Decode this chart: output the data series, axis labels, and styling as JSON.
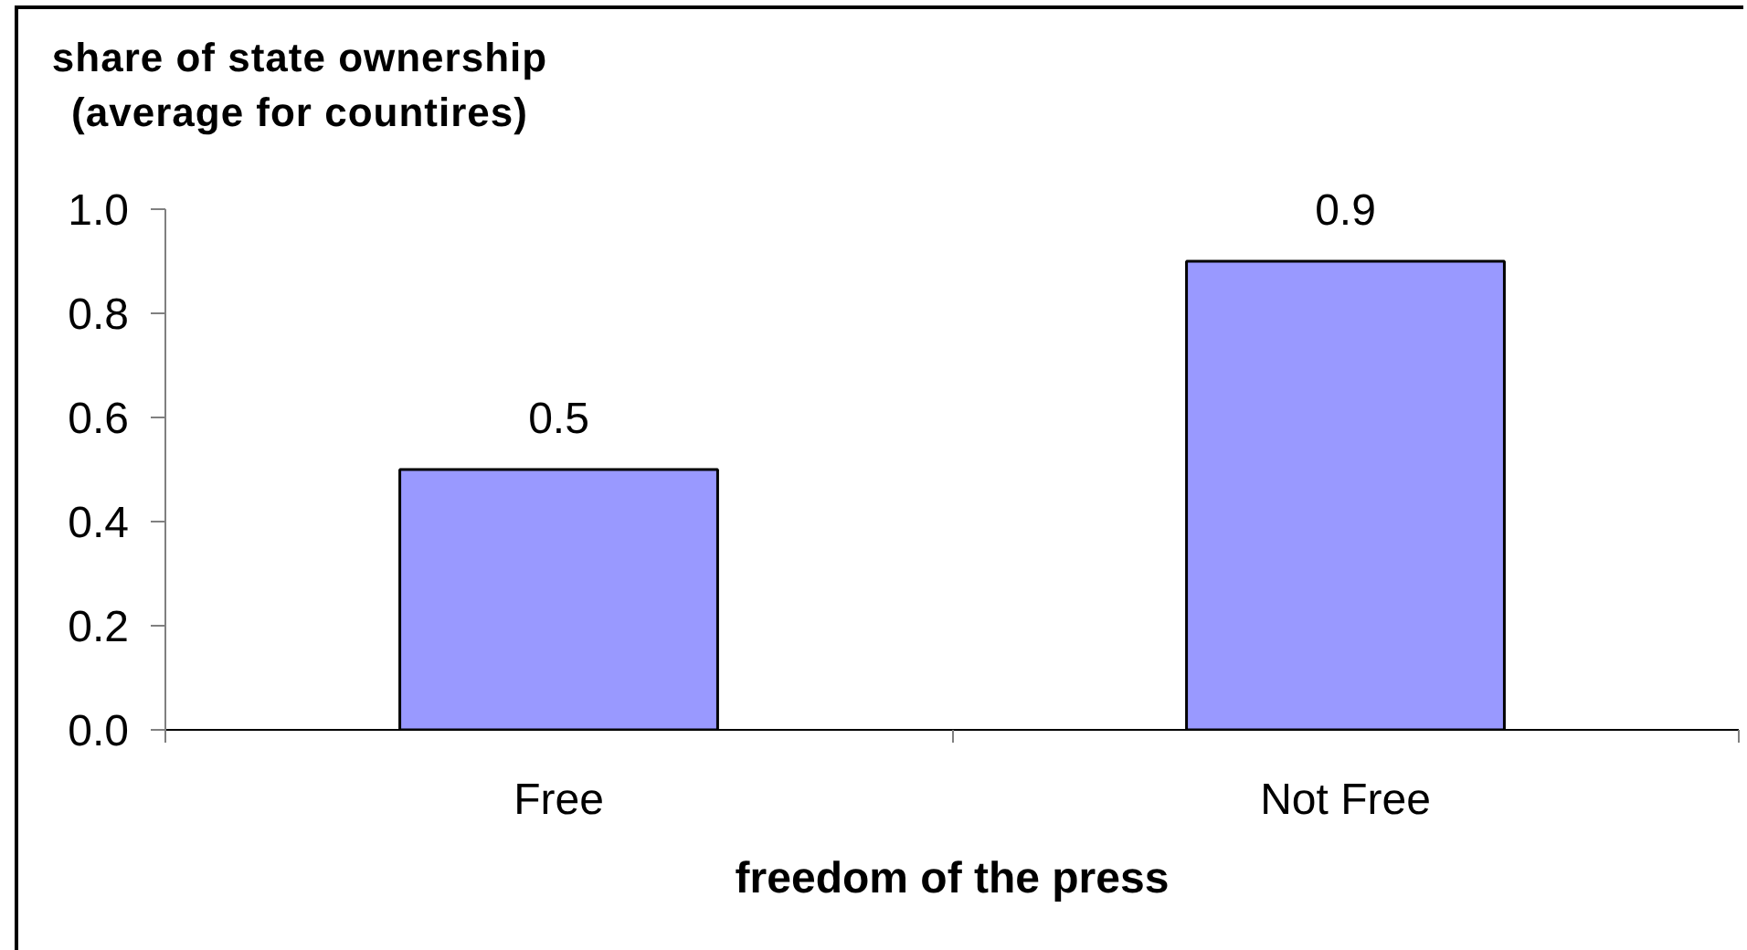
{
  "chart_data": {
    "type": "bar",
    "ylabel": "share of state ownership\n(average for countires)",
    "xlabel": "freedom of the press",
    "categories": [
      "Free",
      "Not Free"
    ],
    "values": [
      0.5,
      0.9
    ],
    "color": "#9999ff",
    "ylim": [
      0,
      1.0
    ],
    "yticks": [
      {
        "value": 0,
        "label": "0.0"
      },
      0.2,
      0.4,
      0.6,
      0.8,
      {
        "value": 1,
        "label": "1.0"
      }
    ],
    "data_labels": true,
    "grid": false
  }
}
